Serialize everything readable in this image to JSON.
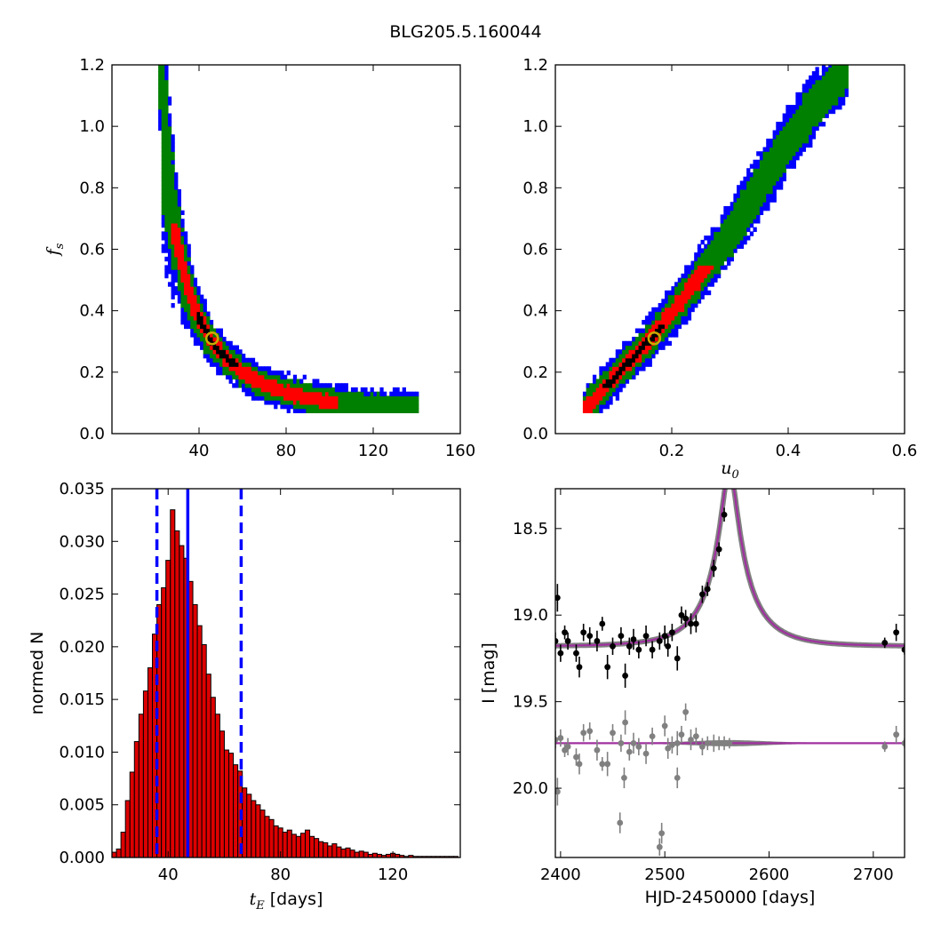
{
  "figure": {
    "title": "BLG205.5.160044"
  },
  "colors": {
    "sigma3": "#0000ff",
    "sigma2": "#008000",
    "sigma1": "#ff0000",
    "best_bin": "#000000",
    "marker": "#ccaa00",
    "hist_bar": "#dd0000",
    "median_line": "#0000ff",
    "model": "#a030a0",
    "model_band": "#808080",
    "residual": "#808080"
  },
  "chart_data": [
    {
      "type": "heatmap",
      "panel": "tE-fs",
      "xlabel": "",
      "ylabel": "f_s",
      "xlim": [
        0,
        160
      ],
      "ylim": [
        0,
        1.2
      ],
      "xticks": [
        "40",
        "80",
        "120",
        "160"
      ],
      "yticks": [
        "0.0",
        "0.2",
        "0.4",
        "0.6",
        "0.8",
        "1.0",
        "1.2"
      ],
      "region_centerline": {
        "x": [
          22,
          25,
          28,
          32,
          36,
          40,
          45,
          52,
          60,
          70,
          80,
          95,
          110,
          125,
          140
        ],
        "y": [
          1.2,
          0.92,
          0.72,
          0.56,
          0.45,
          0.38,
          0.31,
          0.25,
          0.2,
          0.16,
          0.135,
          0.11,
          0.095,
          0.085,
          0.08
        ]
      },
      "best_fit": {
        "x": 46,
        "y": 0.31
      }
    },
    {
      "type": "heatmap",
      "panel": "u0-fs",
      "xlabel": "u_0",
      "ylabel": "",
      "xlim": [
        0,
        0.6
      ],
      "ylim": [
        0,
        1.2
      ],
      "xticks": [
        "0.2",
        "0.4",
        "0.6"
      ],
      "yticks": [
        "0.0",
        "0.2",
        "0.4",
        "0.6",
        "0.8",
        "1.0",
        "1.2"
      ],
      "region_centerline": {
        "x": [
          0.05,
          0.1,
          0.15,
          0.2,
          0.25,
          0.3,
          0.35,
          0.4,
          0.45,
          0.5
        ],
        "y": [
          0.08,
          0.18,
          0.28,
          0.39,
          0.52,
          0.65,
          0.8,
          0.95,
          1.08,
          1.18
        ]
      },
      "best_fit": {
        "x": 0.17,
        "y": 0.31
      }
    },
    {
      "type": "bar",
      "panel": "tE-histogram",
      "xlabel": "t_E [days]",
      "ylabel": "normed N",
      "xlim": [
        20,
        144
      ],
      "ylim": [
        0,
        0.035
      ],
      "xticks": [
        "40",
        "80",
        "120"
      ],
      "yticks": [
        "0.000",
        "0.005",
        "0.010",
        "0.015",
        "0.020",
        "0.025",
        "0.030",
        "0.035"
      ],
      "bin_start": 20,
      "bin_width": 1.6,
      "values": [
        0.0005,
        0.0008,
        0.0024,
        0.0054,
        0.0081,
        0.011,
        0.0136,
        0.0158,
        0.018,
        0.0212,
        0.024,
        0.0256,
        0.0282,
        0.033,
        0.031,
        0.0296,
        0.0284,
        0.0262,
        0.024,
        0.022,
        0.0202,
        0.0174,
        0.0152,
        0.0136,
        0.012,
        0.0102,
        0.0099,
        0.0088,
        0.0082,
        0.0066,
        0.006,
        0.0054,
        0.005,
        0.0045,
        0.0039,
        0.0036,
        0.003,
        0.0028,
        0.0024,
        0.0026,
        0.0022,
        0.002,
        0.0023,
        0.0026,
        0.002,
        0.0018,
        0.0015,
        0.0014,
        0.0011,
        0.0013,
        0.001,
        0.0008,
        0.0009,
        0.0007,
        0.0005,
        0.0006,
        0.0005,
        0.0003,
        0.0004,
        0.0003,
        0.0002,
        0.0003,
        0.0004,
        0.0003,
        0.0002,
        0.0001,
        0.0002,
        0.0001,
        0.0001,
        0.0001,
        0.0001,
        0.0001,
        0.0001,
        0.0001,
        0.0001,
        0.0001,
        0.0001
      ],
      "median": 47,
      "lower": 36,
      "upper": 66
    },
    {
      "type": "scatter",
      "panel": "light-curve",
      "xlabel": "HJD-2450000 [days]",
      "ylabel": "I [mag]",
      "xlim": [
        2395,
        2730
      ],
      "ylim": [
        20.4,
        18.27
      ],
      "y_inverted": true,
      "xticks": [
        "2400",
        "2500",
        "2600",
        "2700"
      ],
      "yticks": [
        "18.5",
        "19.0",
        "19.5",
        "20.0"
      ],
      "model": {
        "t0": 2562,
        "tE": 46,
        "u0": 0.17,
        "fs": 0.31,
        "base": 19.18
      },
      "residual_offset": 19.74,
      "data": {
        "t": [
          2395,
          2397,
          2400,
          2404,
          2407,
          2415,
          2418,
          2422,
          2428,
          2435,
          2440,
          2445,
          2450,
          2458,
          2462,
          2466,
          2470,
          2475,
          2482,
          2488,
          2495,
          2500,
          2503,
          2507,
          2512,
          2516,
          2520,
          2525,
          2530,
          2536,
          2541,
          2547,
          2552,
          2557,
          2562,
          2711,
          2722,
          2730
        ],
        "mag": [
          19.15,
          18.9,
          19.22,
          19.1,
          19.15,
          19.22,
          19.3,
          19.1,
          19.12,
          19.15,
          19.05,
          19.3,
          19.18,
          19.12,
          19.35,
          19.18,
          19.14,
          19.2,
          19.12,
          19.2,
          19.15,
          19.12,
          19.18,
          19.1,
          19.25,
          19.0,
          19.02,
          19.05,
          19.05,
          18.88,
          18.85,
          18.73,
          18.62,
          18.42,
          18.22,
          19.16,
          19.1,
          19.2
        ],
        "err": [
          0.05,
          0.08,
          0.05,
          0.04,
          0.05,
          0.05,
          0.06,
          0.05,
          0.05,
          0.06,
          0.04,
          0.07,
          0.05,
          0.05,
          0.07,
          0.05,
          0.06,
          0.05,
          0.06,
          0.05,
          0.05,
          0.06,
          0.06,
          0.05,
          0.07,
          0.05,
          0.05,
          0.06,
          0.05,
          0.05,
          0.04,
          0.05,
          0.04,
          0.04,
          0.03,
          0.03,
          0.05,
          0.03
        ],
        "res": [
          -0.02,
          0.28,
          -0.03,
          0.04,
          0.02,
          0.08,
          0.12,
          -0.06,
          -0.07,
          0.04,
          0.12,
          0.12,
          -0.06,
          0.0,
          -0.12,
          0.05,
          0.0,
          0.02,
          0.06,
          -0.04,
          0.6,
          -0.1,
          0.03,
          0.01,
          0.0,
          -0.05,
          -0.18,
          -0.02,
          -0.04,
          0.02,
          0.0,
          0.0,
          0.0,
          0.0,
          0.0,
          0.02,
          -0.05,
          0.0
        ],
        "extra_res": [
          {
            "t": 2457,
            "r": 0.46
          },
          {
            "t": 2461,
            "r": 0.2
          },
          {
            "t": 2497,
            "r": 0.52
          },
          {
            "t": 2512,
            "r": 0.2
          }
        ]
      }
    }
  ]
}
